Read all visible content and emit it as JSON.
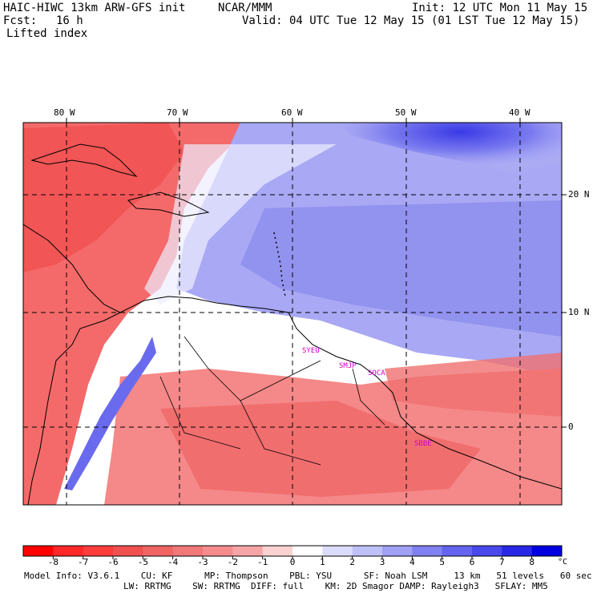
{
  "header": {
    "model": "HAIC-HIWC 13km ARW-GFS init",
    "org": "NCAR/MMM",
    "init": "Init: 12 UTC Mon 11 May 15",
    "fcst_label": "Fcst:",
    "fcst_value": "16 h",
    "valid": "Valid: 04 UTC Tue 12 May 15 (01 LST Tue 12 May 15)",
    "field": "Lifted index"
  },
  "map": {
    "lon_labels": [
      "80 W",
      "70 W",
      "60 W",
      "50 W",
      "40 W"
    ],
    "lat_labels": [
      "20 N",
      "10 N",
      "0"
    ],
    "stations": [
      "SYEU",
      "SMJP",
      "SOCA",
      "SBBE"
    ],
    "colors": {
      "negative": "#f04848",
      "neutral": "#ffffff",
      "positive": "#3030e8",
      "station_label": "#cc00cc"
    }
  },
  "colorbar": {
    "ticks": [
      "-8",
      "-7",
      "-6",
      "-5",
      "-4",
      "-3",
      "-2",
      "-1",
      "0",
      "1",
      "2",
      "3",
      "4",
      "5",
      "6",
      "7",
      "8"
    ],
    "unit": "°C",
    "colors": [
      "#ff0000",
      "#ff2828",
      "#ff3c3c",
      "#f05050",
      "#f06464",
      "#f07878",
      "#f58c8c",
      "#f5a5a5",
      "#fad2d2",
      "#ffffff",
      "#dcdcfa",
      "#c0c0f8",
      "#a0a0f5",
      "#8080f0",
      "#6464f0",
      "#4848eb",
      "#2828e6",
      "#0000e0"
    ]
  },
  "model_info": {
    "line1": "Model Info: V3.6.1    CU: KF      MP: Thompson    PBL: YSU      SF: Noah LSM     13 km   51 levels   60 sec",
    "line2": "LW: RRTMG    SW: RRTMG  DIFF: full    KM: 2D Smagor DAMP: Rayleigh3   SFLAY: MM5"
  }
}
